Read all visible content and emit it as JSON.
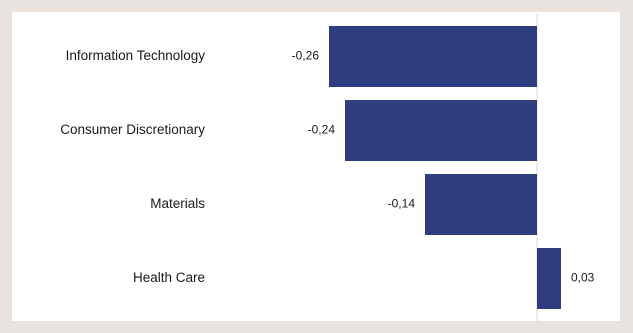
{
  "chart_data": {
    "type": "bar",
    "orientation": "horizontal",
    "categories": [
      "Information Technology",
      "Consumer Discretionary",
      "Materials",
      "Health Care"
    ],
    "values": [
      -0.26,
      -0.24,
      -0.14,
      0.03
    ],
    "value_labels": [
      "-0,26",
      "-0,24",
      "-0,14",
      "0,03"
    ],
    "title": "",
    "xlabel": "",
    "ylabel": "",
    "xlim": [
      -0.26,
      0.03
    ],
    "grid": false,
    "bar_color": "#2e3e80",
    "axis_color": "#d9d9d9"
  }
}
